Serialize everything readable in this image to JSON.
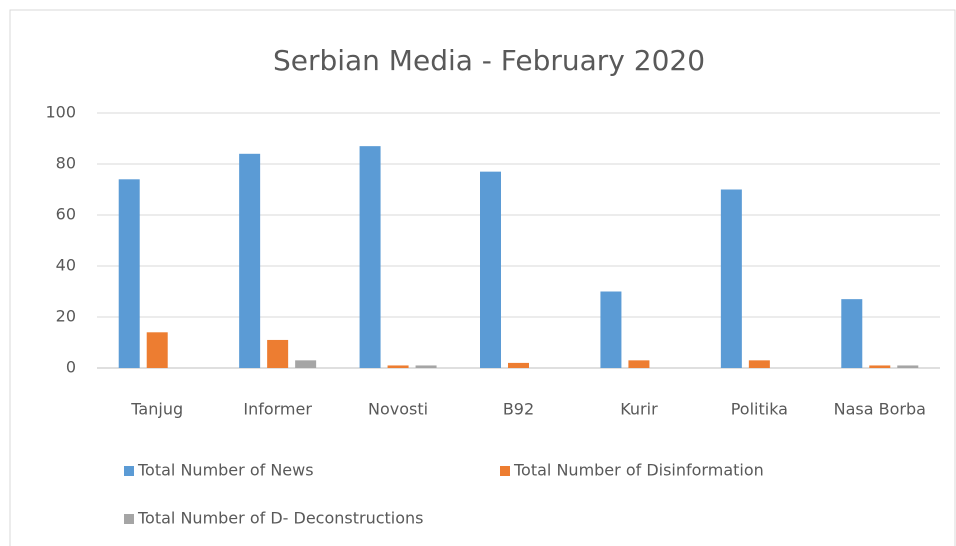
{
  "chart_data": {
    "type": "bar",
    "title": "Serbian Media - February 2020",
    "categories": [
      "Tanjug",
      "Informer",
      "Novosti",
      "B92",
      "Kurir",
      "Politika",
      "Nasa Borba"
    ],
    "series": [
      {
        "name": "Total Number of News",
        "color": "#5b9bd5",
        "values": [
          74,
          84,
          87,
          77,
          30,
          70,
          27
        ]
      },
      {
        "name": "Total Number of Disinformation",
        "color": "#ed7d31",
        "values": [
          14,
          11,
          1,
          2,
          3,
          3,
          1
        ]
      },
      {
        "name": "Total Number of D- Deconstructions",
        "color": "#a5a5a5",
        "values": [
          0,
          3,
          1,
          0,
          0,
          0,
          1
        ]
      }
    ],
    "ylim": [
      0,
      100
    ],
    "yticks": [
      0,
      20,
      40,
      60,
      80,
      100
    ],
    "grid": true,
    "legend": "bottom"
  }
}
